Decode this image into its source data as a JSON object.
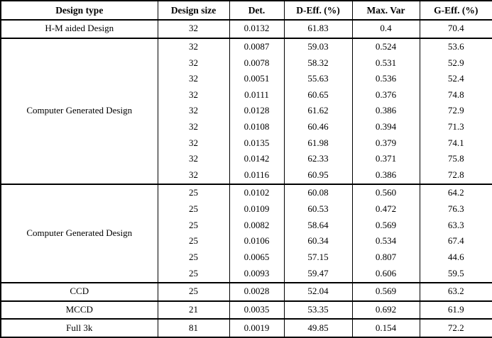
{
  "table": {
    "columns": [
      "Design type",
      "Design size",
      "Det.",
      "D-Eff. (%)",
      "Max. Var",
      "G-Eff. (%)"
    ],
    "sections": [
      {
        "design_type": "H-M aided Design",
        "rows": [
          [
            "32",
            "0.0132",
            "61.83",
            "0.4",
            "70.4"
          ]
        ]
      },
      {
        "design_type": "Computer Generated Design",
        "rows": [
          [
            "32",
            "0.0087",
            "59.03",
            "0.524",
            "53.6"
          ],
          [
            "32",
            "0.0078",
            "58.32",
            "0.531",
            "52.9"
          ],
          [
            "32",
            "0.0051",
            "55.63",
            "0.536",
            "52.4"
          ],
          [
            "32",
            "0.0111",
            "60.65",
            "0.376",
            "74.8"
          ],
          [
            "32",
            "0.0128",
            "61.62",
            "0.386",
            "72.9"
          ],
          [
            "32",
            "0.0108",
            "60.46",
            "0.394",
            "71.3"
          ],
          [
            "32",
            "0.0135",
            "61.98",
            "0.379",
            "74.1"
          ],
          [
            "32",
            "0.0142",
            "62.33",
            "0.371",
            "75.8"
          ],
          [
            "32",
            "0.0116",
            "60.95",
            "0.386",
            "72.8"
          ]
        ]
      },
      {
        "design_type": "Computer Generated Design",
        "rows": [
          [
            "25",
            "0.0102",
            "60.08",
            "0.560",
            "64.2"
          ],
          [
            "25",
            "0.0109",
            "60.53",
            "0.472",
            "76.3"
          ],
          [
            "25",
            "0.0082",
            "58.64",
            "0.569",
            "63.3"
          ],
          [
            "25",
            "0.0106",
            "60.34",
            "0.534",
            "67.4"
          ],
          [
            "25",
            "0.0065",
            "57.15",
            "0.807",
            "44.6"
          ],
          [
            "25",
            "0.0093",
            "59.47",
            "0.606",
            "59.5"
          ]
        ]
      },
      {
        "design_type": "CCD",
        "rows": [
          [
            "25",
            "0.0028",
            "52.04",
            "0.569",
            "63.2"
          ]
        ]
      },
      {
        "design_type": "MCCD",
        "rows": [
          [
            "21",
            "0.0035",
            "53.35",
            "0.692",
            "61.9"
          ]
        ]
      },
      {
        "design_type": "Full 3k",
        "rows": [
          [
            "81",
            "0.0019",
            "49.85",
            "0.154",
            "72.2"
          ]
        ]
      }
    ]
  },
  "chart_data": {
    "type": "table",
    "columns": [
      "Design type",
      "Design size",
      "Det.",
      "D-Eff. (%)",
      "Max. Var",
      "G-Eff. (%)"
    ],
    "rows": [
      [
        "H-M aided Design",
        "32",
        "0.0132",
        "61.83",
        "0.4",
        "70.4"
      ],
      [
        "Computer Generated Design",
        "32",
        "0.0087",
        "59.03",
        "0.524",
        "53.6"
      ],
      [
        "Computer Generated Design",
        "32",
        "0.0078",
        "58.32",
        "0.531",
        "52.9"
      ],
      [
        "Computer Generated Design",
        "32",
        "0.0051",
        "55.63",
        "0.536",
        "52.4"
      ],
      [
        "Computer Generated Design",
        "32",
        "0.0111",
        "60.65",
        "0.376",
        "74.8"
      ],
      [
        "Computer Generated Design",
        "32",
        "0.0128",
        "61.62",
        "0.386",
        "72.9"
      ],
      [
        "Computer Generated Design",
        "32",
        "0.0108",
        "60.46",
        "0.394",
        "71.3"
      ],
      [
        "Computer Generated Design",
        "32",
        "0.0135",
        "61.98",
        "0.379",
        "74.1"
      ],
      [
        "Computer Generated Design",
        "32",
        "0.0142",
        "62.33",
        "0.371",
        "75.8"
      ],
      [
        "Computer Generated Design",
        "32",
        "0.0116",
        "60.95",
        "0.386",
        "72.8"
      ],
      [
        "Computer Generated Design",
        "25",
        "0.0102",
        "60.08",
        "0.560",
        "64.2"
      ],
      [
        "Computer Generated Design",
        "25",
        "0.0109",
        "60.53",
        "0.472",
        "76.3"
      ],
      [
        "Computer Generated Design",
        "25",
        "0.0082",
        "58.64",
        "0.569",
        "63.3"
      ],
      [
        "Computer Generated Design",
        "25",
        "0.0106",
        "60.34",
        "0.534",
        "67.4"
      ],
      [
        "Computer Generated Design",
        "25",
        "0.0065",
        "57.15",
        "0.807",
        "44.6"
      ],
      [
        "Computer Generated Design",
        "25",
        "0.0093",
        "59.47",
        "0.606",
        "59.5"
      ],
      [
        "CCD",
        "25",
        "0.0028",
        "52.04",
        "0.569",
        "63.2"
      ],
      [
        "MCCD",
        "21",
        "0.0035",
        "53.35",
        "0.692",
        "61.9"
      ],
      [
        "Full 3k",
        "81",
        "0.0019",
        "49.85",
        "0.154",
        "72.2"
      ]
    ]
  },
  "colors": {
    "border": "#000000",
    "text": "#000000",
    "background": "#ffffff"
  }
}
